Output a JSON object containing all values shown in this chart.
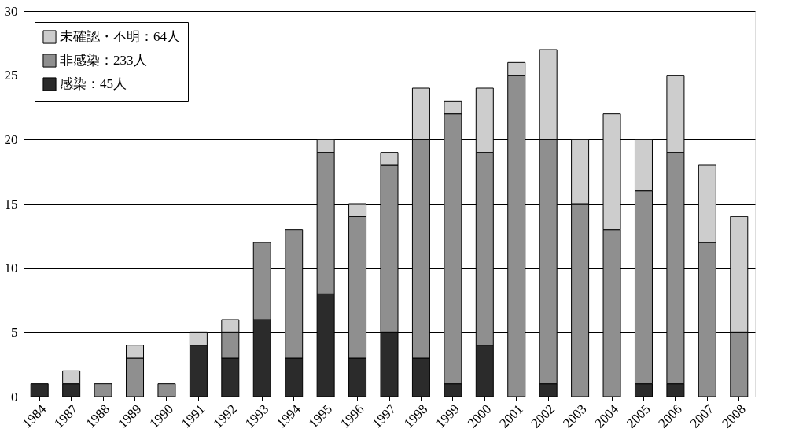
{
  "chart_data": {
    "type": "bar",
    "stacked": true,
    "legend": "top left",
    "grid": "y",
    "categories": [
      "1984",
      "1987",
      "1988",
      "1989",
      "1990",
      "1991",
      "1992",
      "1993",
      "1994",
      "1995",
      "1996",
      "1997",
      "1998",
      "1999",
      "2000",
      "2001",
      "2002",
      "2003",
      "2004",
      "2005",
      "2006",
      "2007",
      "2008"
    ],
    "ylim": [
      0,
      30
    ],
    "yticks": [
      0,
      5,
      10,
      15,
      20,
      25,
      30
    ],
    "series": [
      {
        "name": "感染：45人",
        "color": "#2b2b2b",
        "values": [
          1,
          1,
          0,
          0,
          0,
          4,
          3,
          6,
          3,
          8,
          3,
          5,
          3,
          1,
          4,
          0,
          1,
          0,
          0,
          1,
          1,
          0,
          0
        ]
      },
      {
        "name": "非感染：233人",
        "color": "#8f8f8f",
        "values": [
          0,
          0,
          1,
          3,
          1,
          0,
          2,
          6,
          10,
          11,
          11,
          13,
          17,
          21,
          15,
          25,
          19,
          15,
          13,
          15,
          18,
          12,
          5
        ]
      },
      {
        "name": "未確認・不明：64人",
        "color": "#cdcdcd",
        "values": [
          0,
          1,
          0,
          1,
          0,
          1,
          1,
          0,
          0,
          1,
          1,
          1,
          4,
          1,
          5,
          1,
          7,
          5,
          9,
          4,
          6,
          6,
          9
        ]
      }
    ]
  }
}
